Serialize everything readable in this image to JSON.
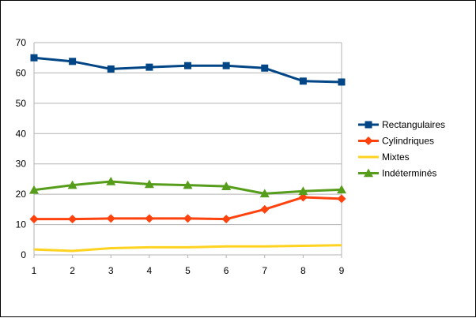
{
  "chart_data": {
    "type": "line",
    "title": "",
    "xlabel": "",
    "ylabel": "",
    "x": [
      1,
      2,
      3,
      4,
      5,
      6,
      7,
      8,
      9
    ],
    "ylim": [
      0,
      70
    ],
    "yticks": [
      0,
      10,
      20,
      30,
      40,
      50,
      60,
      70
    ],
    "grid": "horizontal",
    "legend": "right",
    "series": [
      {
        "name": "Rectangulaires",
        "color": "#004586",
        "marker": "square",
        "values": [
          65.0,
          63.8,
          61.3,
          61.9,
          62.4,
          62.4,
          61.6,
          57.3,
          57.0
        ]
      },
      {
        "name": "Cylindriques",
        "color": "#ff420e",
        "marker": "diamond",
        "values": [
          11.8,
          11.8,
          12.0,
          12.0,
          12.0,
          11.8,
          15.0,
          19.0,
          18.5
        ]
      },
      {
        "name": "Mixtes",
        "color": "#ffd320",
        "marker": "none",
        "values": [
          1.8,
          1.3,
          2.2,
          2.5,
          2.5,
          2.8,
          2.8,
          3.0,
          3.2
        ]
      },
      {
        "name": "Indéterminés",
        "color": "#579d1c",
        "marker": "triangle",
        "values": [
          21.4,
          23.0,
          24.2,
          23.3,
          23.0,
          22.6,
          20.2,
          21.0,
          21.5
        ]
      }
    ]
  }
}
